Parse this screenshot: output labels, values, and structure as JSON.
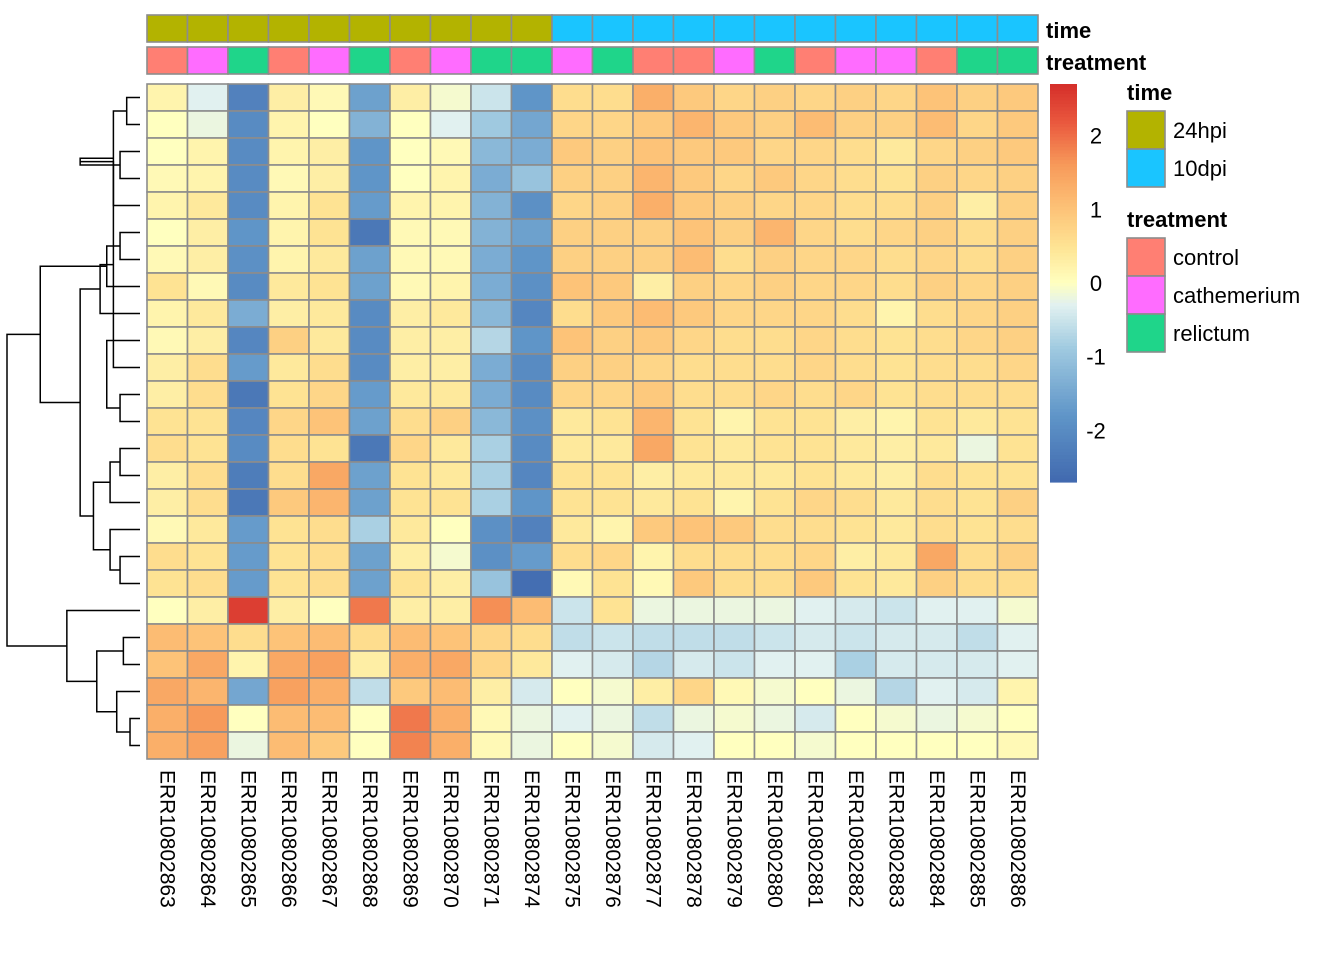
{
  "chart_data": {
    "type": "heatmap",
    "title": "",
    "columns": [
      "ERR10802863",
      "ERR10802864",
      "ERR10802865",
      "ERR10802866",
      "ERR10802867",
      "ERR10802868",
      "ERR10802869",
      "ERR10802870",
      "ERR10802871",
      "ERR10802874",
      "ERR10802875",
      "ERR10802876",
      "ERR10802877",
      "ERR10802878",
      "ERR10802879",
      "ERR10802880",
      "ERR10802881",
      "ERR10802882",
      "ERR10802883",
      "ERR10802884",
      "ERR10802885",
      "ERR10802886"
    ],
    "values": [
      [
        0.2,
        -0.3,
        -2.2,
        0.3,
        0.1,
        -1.6,
        0.3,
        -0.1,
        -0.5,
        -1.8,
        0.6,
        0.6,
        1.3,
        0.9,
        0.7,
        0.8,
        0.7,
        0.8,
        0.7,
        1.0,
        0.8,
        0.9
      ],
      [
        0.0,
        -0.2,
        -2.0,
        0.2,
        0.0,
        -1.3,
        0.0,
        -0.3,
        -0.9,
        -1.5,
        0.7,
        0.7,
        0.9,
        1.2,
        0.9,
        0.8,
        1.1,
        0.8,
        0.8,
        1.1,
        0.7,
        0.9
      ],
      [
        0.0,
        0.2,
        -2.0,
        0.2,
        0.3,
        -1.8,
        0.0,
        0.1,
        -1.2,
        -1.4,
        0.9,
        0.8,
        1.0,
        0.9,
        0.9,
        0.7,
        0.7,
        0.6,
        0.4,
        0.7,
        0.8,
        0.9
      ],
      [
        0.1,
        0.2,
        -2.0,
        0.1,
        0.3,
        -1.8,
        0.0,
        0.2,
        -1.4,
        -1.0,
        0.8,
        0.8,
        1.2,
        0.9,
        0.7,
        0.9,
        0.7,
        0.6,
        0.5,
        0.8,
        0.7,
        0.8
      ],
      [
        0.2,
        0.4,
        -2.0,
        0.2,
        0.5,
        -1.7,
        0.2,
        0.2,
        -1.3,
        -1.9,
        0.7,
        0.8,
        1.3,
        0.9,
        0.8,
        0.7,
        0.7,
        0.6,
        0.6,
        0.8,
        0.3,
        0.8
      ],
      [
        0.0,
        0.3,
        -1.8,
        0.2,
        0.5,
        -2.4,
        0.1,
        0.1,
        -1.3,
        -1.6,
        0.8,
        0.8,
        0.8,
        1.0,
        0.8,
        1.2,
        0.7,
        0.6,
        0.7,
        0.8,
        0.6,
        0.8
      ],
      [
        0.1,
        0.3,
        -1.9,
        0.2,
        0.4,
        -1.6,
        0.1,
        0.1,
        -1.4,
        -1.8,
        0.8,
        0.8,
        0.8,
        1.1,
        0.6,
        0.8,
        0.7,
        0.7,
        0.6,
        0.7,
        0.6,
        0.8
      ],
      [
        0.5,
        0.1,
        -2.0,
        0.4,
        0.5,
        -1.6,
        0.1,
        0.2,
        -1.4,
        -1.9,
        1.0,
        0.9,
        0.3,
        0.8,
        0.7,
        0.8,
        0.7,
        0.7,
        0.6,
        0.8,
        0.7,
        0.8
      ],
      [
        0.2,
        0.4,
        -1.4,
        0.3,
        0.4,
        -2.0,
        0.3,
        0.4,
        -1.2,
        -2.1,
        0.6,
        0.9,
        1.1,
        0.9,
        0.7,
        0.7,
        0.7,
        0.6,
        0.2,
        0.6,
        0.7,
        0.8
      ],
      [
        0.1,
        0.3,
        -2.1,
        0.8,
        0.4,
        -2.0,
        0.3,
        0.3,
        -0.7,
        -1.8,
        1.0,
        0.8,
        0.9,
        0.7,
        0.6,
        0.6,
        0.7,
        0.6,
        0.5,
        0.6,
        0.7,
        0.8
      ],
      [
        0.3,
        0.6,
        -1.7,
        0.4,
        0.6,
        -2.0,
        0.3,
        0.3,
        -1.4,
        -2.0,
        0.8,
        0.8,
        0.7,
        0.6,
        0.6,
        0.6,
        0.7,
        0.6,
        0.5,
        0.6,
        0.6,
        0.7
      ],
      [
        0.3,
        0.6,
        -2.4,
        0.5,
        0.7,
        -1.7,
        0.4,
        0.4,
        -1.4,
        -2.0,
        0.7,
        0.7,
        0.9,
        0.6,
        0.6,
        0.7,
        0.6,
        0.7,
        0.5,
        0.6,
        0.6,
        0.6
      ],
      [
        0.5,
        0.5,
        -2.1,
        0.7,
        1.0,
        -1.6,
        0.6,
        0.8,
        -1.2,
        -1.9,
        0.4,
        0.5,
        1.2,
        0.5,
        0.2,
        0.5,
        0.5,
        0.3,
        0.2,
        0.5,
        0.4,
        0.5
      ],
      [
        0.6,
        0.5,
        -2.0,
        0.6,
        0.5,
        -2.4,
        0.7,
        0.4,
        -0.8,
        -2.0,
        0.4,
        0.4,
        1.4,
        0.5,
        0.4,
        0.5,
        0.5,
        0.4,
        0.3,
        0.4,
        -0.2,
        0.5
      ],
      [
        0.3,
        0.6,
        -2.3,
        0.6,
        1.4,
        -1.6,
        0.5,
        0.4,
        -0.8,
        -2.1,
        0.5,
        0.5,
        0.3,
        0.4,
        0.4,
        0.4,
        0.5,
        0.4,
        0.3,
        0.6,
        0.5,
        0.5
      ],
      [
        0.3,
        0.6,
        -2.4,
        0.9,
        1.2,
        -1.6,
        0.5,
        0.5,
        -0.8,
        -1.8,
        0.5,
        0.5,
        0.4,
        0.5,
        0.2,
        0.5,
        0.7,
        0.6,
        0.4,
        0.6,
        0.5,
        0.8
      ],
      [
        0.1,
        0.4,
        -1.7,
        0.5,
        0.6,
        -0.8,
        0.4,
        0.0,
        -1.9,
        -2.2,
        0.4,
        0.2,
        0.9,
        1.0,
        0.9,
        0.6,
        0.6,
        0.5,
        0.4,
        0.6,
        0.5,
        0.6
      ],
      [
        0.6,
        0.5,
        -1.7,
        0.5,
        0.6,
        -1.6,
        0.3,
        -0.1,
        -1.9,
        -1.7,
        0.6,
        0.7,
        0.2,
        0.6,
        0.6,
        0.6,
        0.7,
        0.3,
        0.4,
        1.4,
        0.6,
        0.8
      ],
      [
        0.5,
        0.6,
        -1.7,
        0.5,
        0.6,
        -1.6,
        0.5,
        0.3,
        -1.0,
        -2.6,
        0.1,
        0.5,
        0.1,
        0.9,
        0.6,
        0.6,
        0.9,
        0.5,
        0.4,
        0.8,
        0.6,
        0.6
      ],
      [
        0.0,
        0.3,
        2.5,
        0.3,
        0.0,
        1.9,
        0.3,
        0.3,
        1.7,
        1.1,
        -0.5,
        0.5,
        -0.2,
        -0.2,
        -0.2,
        -0.2,
        -0.3,
        -0.4,
        -0.5,
        -0.3,
        -0.3,
        -0.1
      ],
      [
        1.1,
        1.0,
        0.6,
        1.0,
        1.1,
        0.6,
        1.1,
        1.0,
        0.7,
        0.6,
        -0.6,
        -0.5,
        -0.6,
        -0.6,
        -0.6,
        -0.5,
        -0.4,
        -0.5,
        -0.4,
        -0.4,
        -0.6,
        -0.3
      ],
      [
        1.0,
        1.4,
        0.2,
        1.4,
        1.5,
        0.3,
        1.3,
        1.4,
        0.7,
        0.4,
        -0.3,
        -0.4,
        -0.7,
        -0.4,
        -0.5,
        -0.3,
        -0.3,
        -0.8,
        -0.4,
        -0.4,
        -0.4,
        -0.3
      ],
      [
        1.4,
        1.2,
        -1.5,
        1.5,
        1.3,
        -0.6,
        0.9,
        1.1,
        0.3,
        -0.4,
        0.0,
        -0.1,
        0.3,
        0.7,
        0.1,
        -0.1,
        0.0,
        -0.2,
        -0.7,
        -0.3,
        -0.4,
        0.2
      ],
      [
        1.3,
        1.6,
        0.0,
        1.1,
        1.1,
        0.0,
        1.9,
        1.3,
        0.1,
        -0.2,
        -0.3,
        -0.2,
        -0.6,
        -0.2,
        -0.1,
        -0.2,
        -0.4,
        0.0,
        -0.1,
        -0.2,
        -0.1,
        0.0
      ],
      [
        1.3,
        1.5,
        -0.2,
        1.1,
        0.9,
        0.0,
        1.8,
        1.3,
        0.1,
        -0.2,
        0.0,
        -0.1,
        -0.4,
        -0.3,
        0.0,
        0.0,
        -0.1,
        0.0,
        0.0,
        0.0,
        0.0,
        0.1
      ]
    ],
    "color_scale": {
      "min": -2.7,
      "max": 2.7,
      "ticks": [
        2,
        1,
        0,
        -1,
        -2
      ],
      "tick_labels": [
        "2",
        "1",
        "0",
        "-1",
        "-2"
      ],
      "stops": [
        {
          "v": -2.7,
          "c": "#4169AF"
        },
        {
          "v": -1.8,
          "c": "#5F95C8"
        },
        {
          "v": -0.9,
          "c": "#9FC9E0"
        },
        {
          "v": -0.3,
          "c": "#E1F1F0"
        },
        {
          "v": 0.0,
          "c": "#FFFFBF"
        },
        {
          "v": 0.5,
          "c": "#FEE393"
        },
        {
          "v": 1.0,
          "c": "#FDC378"
        },
        {
          "v": 1.6,
          "c": "#F79A5A"
        },
        {
          "v": 2.2,
          "c": "#E9563D"
        },
        {
          "v": 2.7,
          "c": "#D42E2A"
        }
      ]
    },
    "annotations": {
      "time": {
        "label": "time",
        "values": [
          "24hpi",
          "24hpi",
          "24hpi",
          "24hpi",
          "24hpi",
          "24hpi",
          "24hpi",
          "24hpi",
          "24hpi",
          "24hpi",
          "10dpi",
          "10dpi",
          "10dpi",
          "10dpi",
          "10dpi",
          "10dpi",
          "10dpi",
          "10dpi",
          "10dpi",
          "10dpi",
          "10dpi",
          "10dpi"
        ],
        "legend": [
          {
            "level": "24hpi",
            "color": "#B3B300"
          },
          {
            "level": "10dpi",
            "color": "#1AC5FF"
          }
        ]
      },
      "treatment": {
        "label": "treatment",
        "values": [
          "control",
          "cathemerium",
          "relictum",
          "control",
          "cathemerium",
          "relictum",
          "control",
          "cathemerium",
          "relictum",
          "relictum",
          "cathemerium",
          "relictum",
          "control",
          "control",
          "cathemerium",
          "relictum",
          "control",
          "cathemerium",
          "cathemerium",
          "control",
          "relictum",
          "relictum"
        ],
        "legend": [
          {
            "level": "control",
            "color": "#FF7F73"
          },
          {
            "level": "cathemerium",
            "color": "#FF6CFF"
          },
          {
            "level": "relictum",
            "color": "#1FD58A"
          }
        ]
      }
    },
    "row_dendrogram": {
      "merges": [
        [
          -1,
          -2
        ],
        [
          -3,
          -4
        ],
        [
          -6,
          -7
        ],
        [
          -5,
          1
        ],
        [
          -8,
          3
        ],
        [
          2,
          4
        ],
        [
          -12,
          -13
        ],
        [
          -11,
          6
        ],
        [
          -10,
          7
        ],
        [
          -9,
          8
        ],
        [
          -14,
          -15
        ],
        [
          -16,
          11
        ],
        [
          -18,
          -19
        ],
        [
          -17,
          13
        ],
        [
          12,
          14
        ],
        [
          10,
          15
        ],
        [
          5,
          16
        ],
        [
          -24,
          -25
        ],
        [
          -23,
          18
        ],
        [
          -22,
          -21
        ],
        [
          19,
          20
        ],
        [
          -20,
          21
        ],
        [
          17,
          22
        ]
      ],
      "heights": [
        0.2,
        0.3,
        0.3,
        0.4,
        0.5,
        0.9,
        0.3,
        0.4,
        0.5,
        0.6,
        0.3,
        0.45,
        0.3,
        0.45,
        0.7,
        0.9,
        1.5,
        0.15,
        0.35,
        0.25,
        0.65,
        1.1,
        2.0
      ]
    }
  }
}
